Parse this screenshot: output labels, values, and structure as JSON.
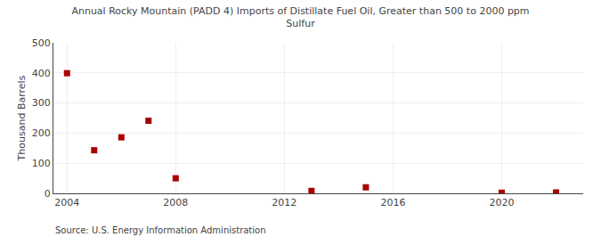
{
  "chart_data": {
    "type": "scatter",
    "title": "Annual Rocky Mountain (PADD 4) Imports of Distillate Fuel Oil, Greater than 500 to 2000 ppm Sulfur",
    "ylabel": "Thousand Barrels",
    "annotations": [
      "Source: U.S. Energy Information Administration"
    ],
    "x": [
      2004,
      2005,
      2006,
      2007,
      2008,
      2013,
      2015,
      2020,
      2022
    ],
    "values": [
      399,
      143,
      186,
      241,
      50,
      8,
      20,
      2,
      3
    ],
    "color": "#aa0000",
    "marker": "square",
    "xlim": [
      2003.5,
      2023
    ],
    "xticks": [
      2004,
      2008,
      2012,
      2016,
      2020
    ],
    "ylim": [
      0,
      500
    ],
    "yticks": [
      0,
      100,
      200,
      300,
      400,
      500
    ],
    "grid": true
  }
}
